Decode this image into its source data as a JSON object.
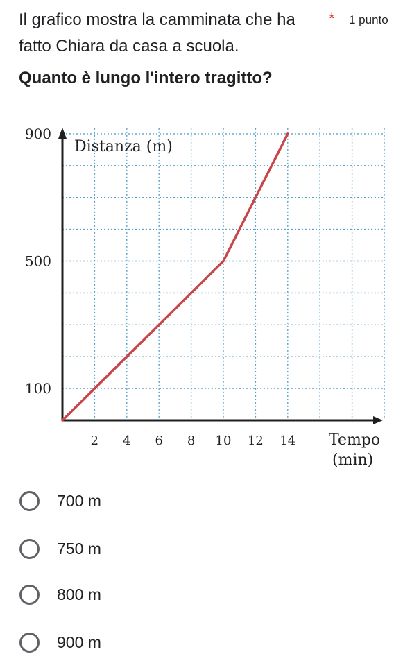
{
  "question": {
    "text": "Il grafico mostra la camminata che ha fatto Chiara da casa a scuola.",
    "prompt": "Quanto è lungo l'intero tragitto?",
    "required_mark": "*",
    "points": "1 punto"
  },
  "chart_data": {
    "type": "line",
    "ylabel": "Distanza (m)",
    "xlabel_line1": "Tempo",
    "xlabel_line2": "(min)",
    "x_ticks": [
      2,
      4,
      6,
      8,
      10,
      12,
      14
    ],
    "y_ticks": [
      100,
      500,
      900
    ],
    "xlim": [
      0,
      20
    ],
    "ylim": [
      0,
      900
    ],
    "grid": true,
    "series": [
      {
        "x": [
          0,
          10,
          14
        ],
        "y": [
          0,
          500,
          900
        ],
        "color": "#c8454a"
      }
    ],
    "colors": {
      "grid": "#5aa0c8",
      "axis": "#1f1f1f"
    }
  },
  "options": [
    {
      "label": "700 m"
    },
    {
      "label": "750 m"
    },
    {
      "label": "800 m"
    },
    {
      "label": "900 m"
    }
  ]
}
